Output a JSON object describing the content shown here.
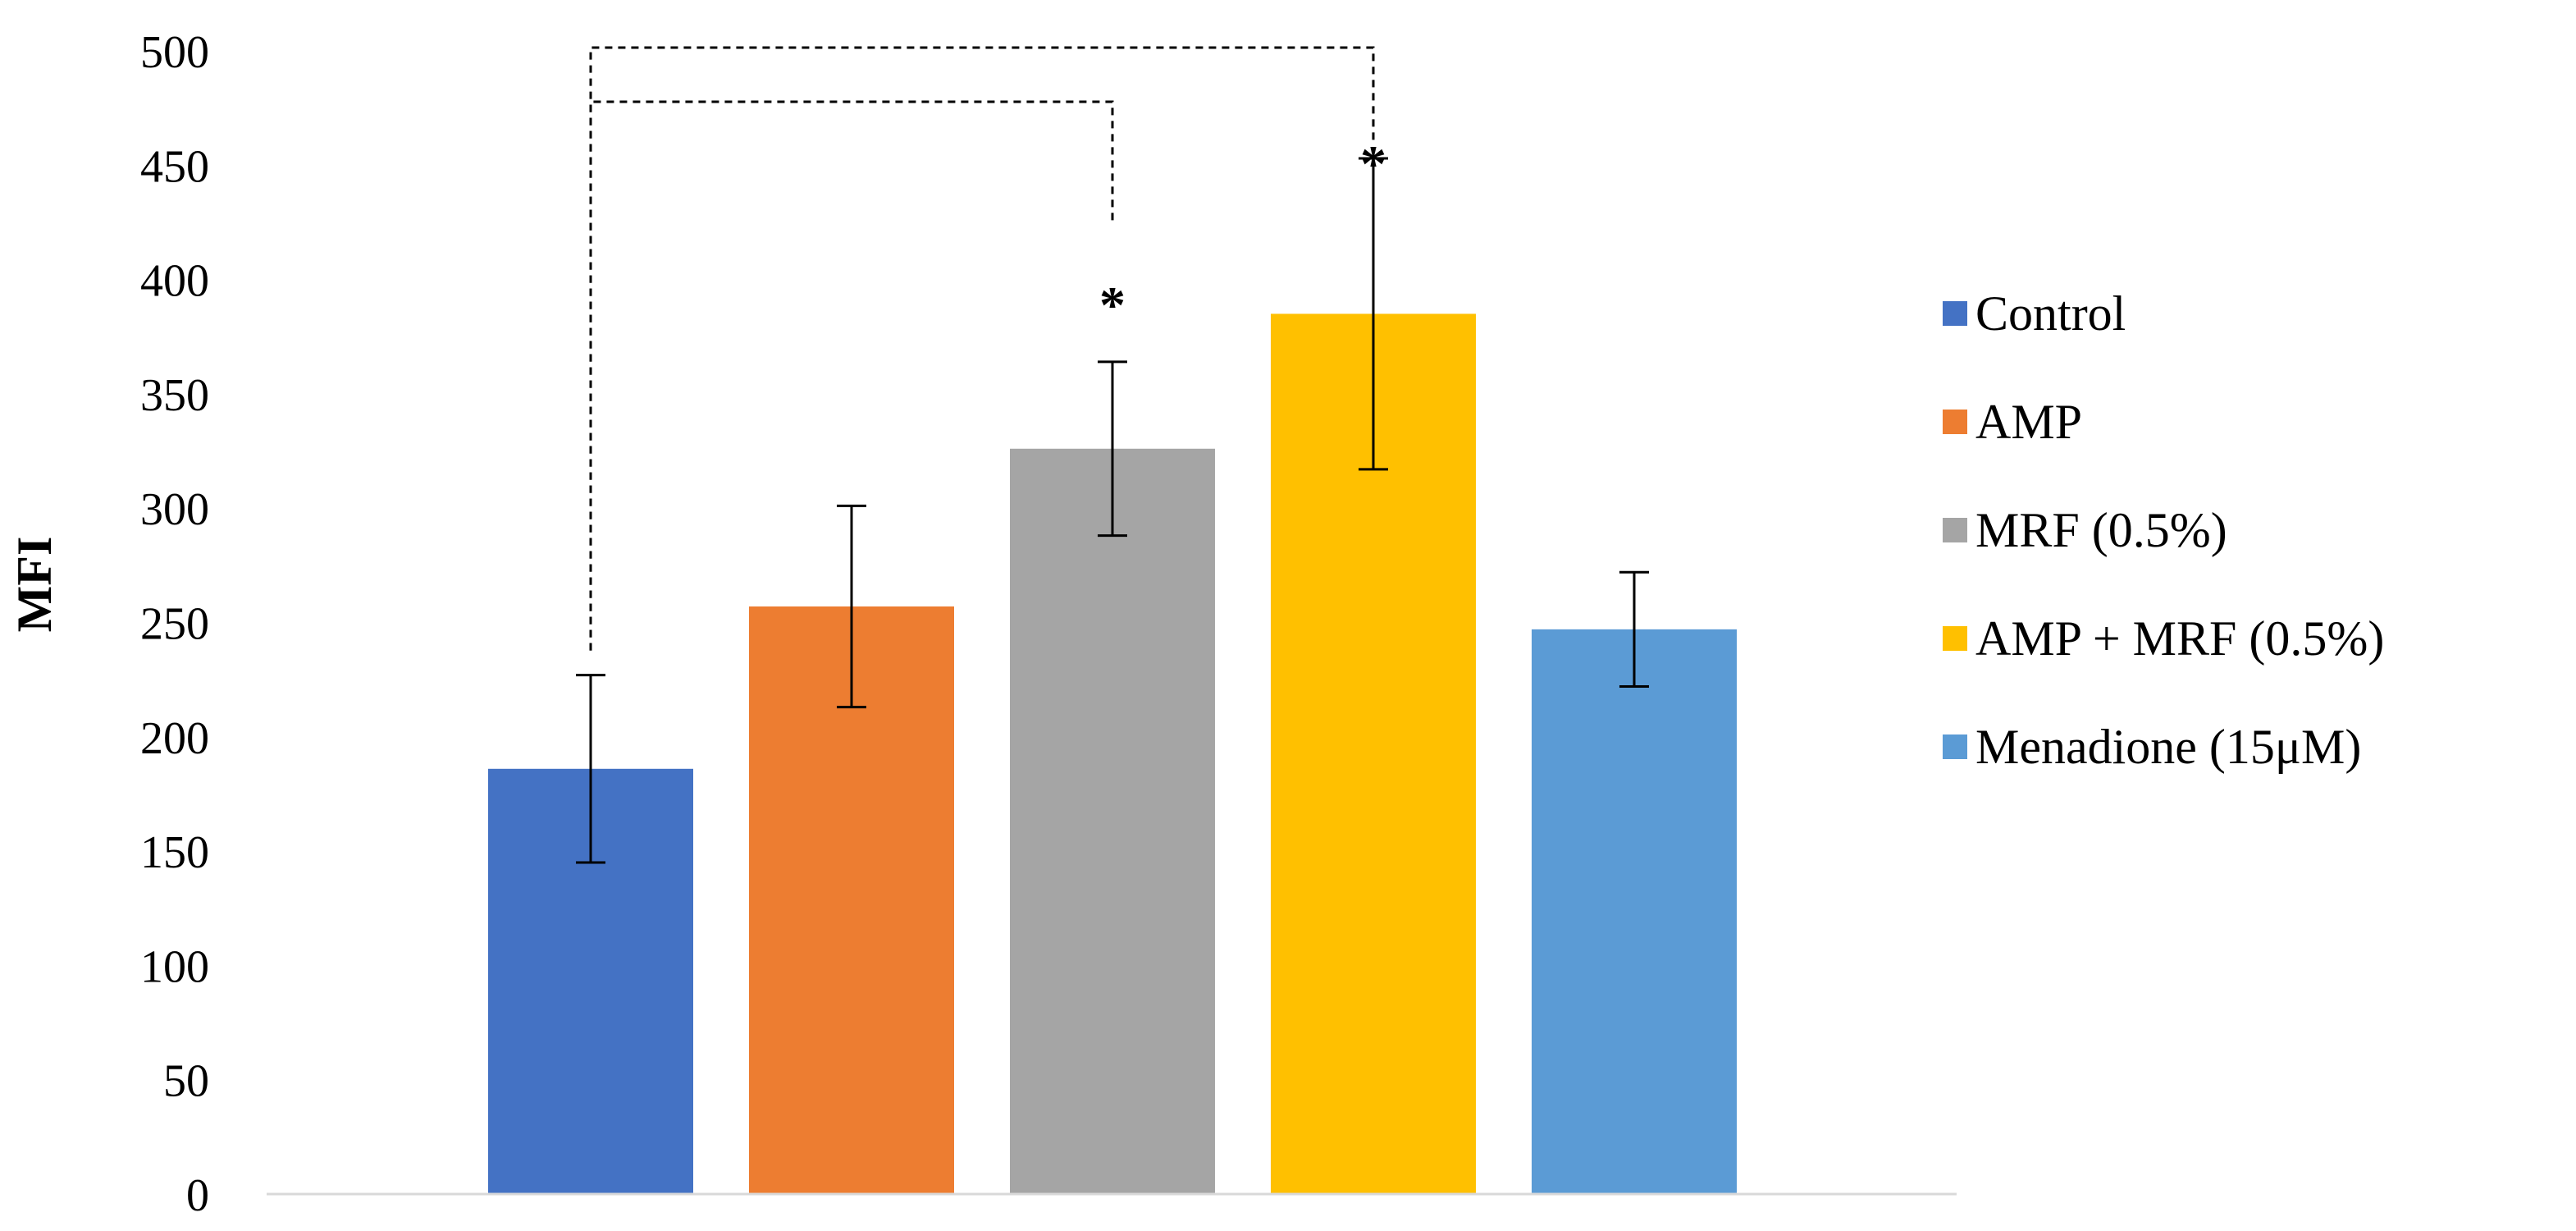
{
  "chart_data": {
    "type": "bar",
    "categories": [
      "Control",
      "AMP",
      "MRF (0.5%)",
      "AMP + MRF (0.5%)",
      "Menadione (15μM)"
    ],
    "values": [
      186,
      257,
      326,
      385,
      247
    ],
    "errors": [
      41,
      44,
      38,
      68,
      25
    ],
    "colors": [
      "#4472C4",
      "#ED7D31",
      "#A5A5A5",
      "#FFC000",
      "#5B9BD5"
    ],
    "title": "",
    "xlabel": "",
    "ylabel": "MFI",
    "ylim": [
      0,
      500
    ],
    "yticks": [
      0,
      50,
      100,
      150,
      200,
      250,
      300,
      350,
      400,
      450,
      500
    ],
    "grid": false,
    "legend": {
      "position": "right",
      "entries": [
        "Control",
        "AMP",
        "MRF (0.5%)",
        "AMP + MRF (0.5%)",
        "Menadione (15μM)"
      ]
    },
    "annotations": [
      {
        "type": "significance-bracket",
        "from": "Control",
        "to": "MRF (0.5%)",
        "label": "*"
      },
      {
        "type": "significance-bracket",
        "from": "Control",
        "to": "AMP + MRF (0.5%)",
        "label": "*"
      }
    ]
  }
}
